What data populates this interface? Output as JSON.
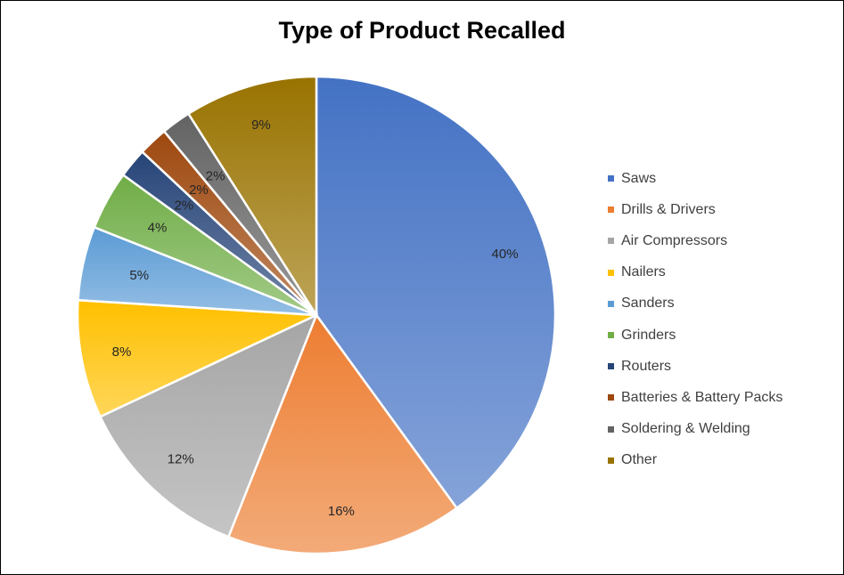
{
  "chart_data": {
    "type": "pie",
    "title": "Type of Product Recalled",
    "categories": [
      "Saws",
      "Drills & Drivers",
      "Air Compressors",
      "Nailers",
      "Sanders",
      "Grinders",
      "Routers",
      "Batteries & Battery Packs",
      "Soldering & Welding",
      "Other"
    ],
    "values": [
      40,
      16,
      12,
      8,
      5,
      4,
      2,
      2,
      2,
      9
    ],
    "labels": [
      "40%",
      "16%",
      "12%",
      "8%",
      "5%",
      "4%",
      "2%",
      "2%",
      "2%",
      "9%"
    ],
    "colors": [
      "#4472C4",
      "#ED7D31",
      "#A5A5A5",
      "#FFC000",
      "#5B9BD5",
      "#70AD47",
      "#264478",
      "#9E480E",
      "#636363",
      "#997300"
    ],
    "legend_position": "right"
  }
}
